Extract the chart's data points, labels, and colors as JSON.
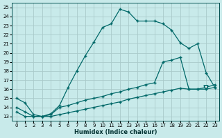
{
  "xlabel": "Humidex (Indice chaleur)",
  "bg_color": "#c8eaea",
  "line_color": "#006868",
  "grid_color": "#aacaca",
  "xlim": [
    -0.5,
    23.5
  ],
  "ylim": [
    12.5,
    25.5
  ],
  "xticks": [
    0,
    1,
    2,
    3,
    4,
    5,
    6,
    7,
    8,
    9,
    10,
    11,
    12,
    13,
    14,
    15,
    16,
    17,
    18,
    19,
    20,
    21,
    22,
    23
  ],
  "yticks": [
    13,
    14,
    15,
    16,
    17,
    18,
    19,
    20,
    21,
    22,
    23,
    24,
    25
  ],
  "line1_x": [
    0,
    1,
    2,
    3,
    4,
    5,
    6,
    7,
    8,
    9,
    10,
    11,
    12,
    13,
    14,
    15,
    16,
    17,
    18,
    19,
    20,
    21,
    22,
    23
  ],
  "line1_y": [
    15.0,
    14.5,
    13.2,
    13.0,
    13.3,
    14.2,
    16.2,
    18.0,
    19.7,
    21.2,
    22.8,
    23.2,
    24.8,
    24.5,
    23.5,
    23.5,
    23.5,
    23.2,
    22.5,
    21.1,
    20.5,
    21.0,
    17.8,
    16.2
  ],
  "line2_x": [
    0,
    1,
    2,
    3,
    4,
    5,
    6,
    7,
    8,
    9,
    10,
    11,
    12,
    13,
    14,
    15,
    16,
    17,
    18,
    19,
    20,
    21,
    22,
    23
  ],
  "line2_y": [
    14.0,
    13.5,
    13.0,
    13.0,
    13.2,
    14.0,
    14.2,
    14.5,
    14.8,
    15.0,
    15.2,
    15.5,
    15.7,
    16.0,
    16.2,
    16.5,
    16.7,
    19.0,
    19.2,
    19.5,
    16.0,
    16.0,
    16.0,
    16.2
  ],
  "line3_x": [
    0,
    1,
    2,
    3,
    4,
    5,
    6,
    7,
    8,
    9,
    10,
    11,
    12,
    13,
    14,
    15,
    16,
    17,
    18,
    19,
    20,
    21,
    22,
    23
  ],
  "line3_y": [
    13.5,
    13.0,
    13.0,
    13.0,
    13.0,
    13.2,
    13.4,
    13.6,
    13.8,
    14.0,
    14.2,
    14.4,
    14.6,
    14.9,
    15.1,
    15.3,
    15.5,
    15.7,
    15.9,
    16.1,
    16.0,
    16.0,
    16.2,
    16.5
  ],
  "tri_x": [
    22
  ],
  "tri_y": [
    16.2
  ]
}
